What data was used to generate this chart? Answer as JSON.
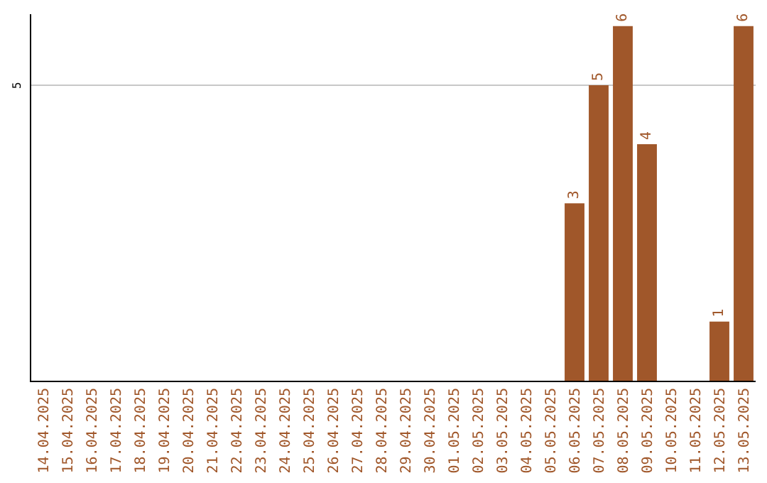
{
  "chart_data": {
    "type": "bar",
    "categories": [
      "14.04.2025",
      "15.04.2025",
      "16.04.2025",
      "17.04.2025",
      "18.04.2025",
      "19.04.2025",
      "20.04.2025",
      "21.04.2025",
      "22.04.2025",
      "23.04.2025",
      "24.04.2025",
      "25.04.2025",
      "26.04.2025",
      "27.04.2025",
      "28.04.2025",
      "29.04.2025",
      "30.04.2025",
      "01.05.2025",
      "02.05.2025",
      "03.05.2025",
      "04.05.2025",
      "05.05.2025",
      "06.05.2025",
      "07.05.2025",
      "08.05.2025",
      "09.05.2025",
      "10.05.2025",
      "11.05.2025",
      "12.05.2025",
      "13.05.2025"
    ],
    "values": [
      null,
      null,
      null,
      null,
      null,
      null,
      null,
      null,
      null,
      null,
      null,
      null,
      null,
      null,
      null,
      null,
      null,
      null,
      null,
      null,
      null,
      null,
      3,
      5,
      6,
      4,
      null,
      null,
      1,
      6
    ],
    "data_labels": true,
    "color": "#a0572a",
    "ylim": [
      0,
      6.2
    ],
    "ref_lines": [
      {
        "axis": "y",
        "value": 5,
        "label": "5",
        "color": "#c8c8c8",
        "line_style": "solid"
      }
    ],
    "tick_labels": "x",
    "legend": false
  }
}
